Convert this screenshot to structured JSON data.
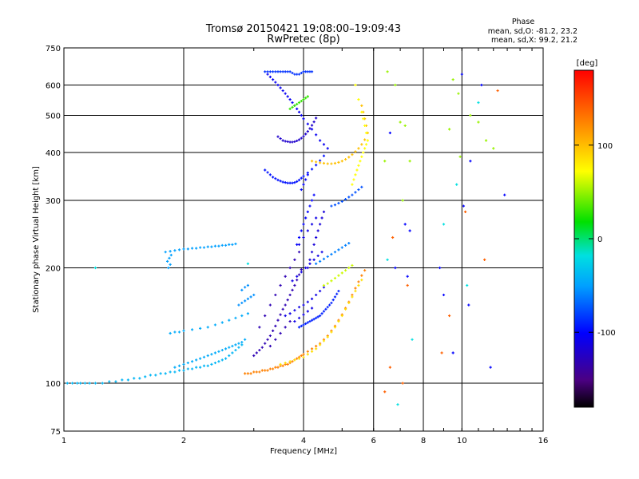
{
  "chart_data": {
    "type": "scatter",
    "title": "Tromsø 20150421 19:08:00–19:09:43",
    "subtitle": "RwPretec (8p)",
    "xlabel": "Frequency [MHz]",
    "ylabel": "Stationary phase Virtual Height [km]",
    "x_scale": "log",
    "y_scale": "log",
    "xlim": [
      1,
      16
    ],
    "ylim": [
      75,
      750
    ],
    "x_ticks": [
      1,
      2,
      4,
      6,
      8,
      10,
      16
    ],
    "y_ticks": [
      75,
      100,
      200,
      300,
      400,
      500,
      600,
      750
    ],
    "grid": true,
    "stats": {
      "heading": "Phase",
      "line_o": "mean, sd,O: -81.2, 23.2",
      "line_x": "mean, sd,X:  99.2, 21.2"
    },
    "colorbar": {
      "label": "[deg]",
      "min": -180,
      "max": 180,
      "ticks": [
        100,
        0,
        -100
      ],
      "tick_labels": [
        "100",
        "0",
        "-100"
      ]
    },
    "series": [
      {
        "phase": -40,
        "x": [
          1.02,
          1.05,
          1.08,
          1.1,
          1.13,
          1.16,
          1.2,
          1.25,
          1.3,
          1.35,
          1.4,
          1.45,
          1.5,
          1.55,
          1.6,
          1.65,
          1.7,
          1.75,
          1.8,
          1.85,
          1.9,
          1.95,
          2.0,
          2.05,
          2.1,
          2.15,
          2.2,
          2.25,
          2.3,
          2.35,
          2.4,
          2.45,
          2.5,
          2.55,
          2.6,
          2.65,
          2.7,
          2.75,
          2.8
        ],
        "y": [
          100,
          100,
          100,
          100,
          100,
          100,
          100,
          100,
          101,
          101,
          102,
          102,
          103,
          103,
          104,
          105,
          105,
          106,
          106,
          107,
          107,
          108,
          108,
          109,
          109,
          110,
          110,
          111,
          111,
          112,
          113,
          114,
          115,
          116,
          118,
          120,
          122,
          124,
          126
        ]
      },
      {
        "phase": -45,
        "x": [
          1.9,
          1.95,
          2.0,
          2.05,
          2.1,
          2.15,
          2.2,
          2.25,
          2.3,
          2.35,
          2.4,
          2.45,
          2.5,
          2.55,
          2.6,
          2.65,
          2.7,
          2.75,
          2.8,
          2.85,
          1.85,
          1.9,
          1.95,
          2.0,
          2.1,
          2.2,
          2.3,
          2.4,
          2.5,
          2.6,
          2.7,
          2.8,
          2.9
        ],
        "y": [
          110,
          111,
          112,
          113,
          114,
          115,
          116,
          117,
          118,
          119,
          120,
          121,
          122,
          123,
          124,
          125,
          126,
          127,
          128,
          130,
          135,
          136,
          136,
          137,
          138,
          139,
          140,
          142,
          144,
          146,
          148,
          150,
          152
        ]
      },
      {
        "phase": -50,
        "x": [
          1.8,
          1.85,
          1.9,
          1.95,
          2.0,
          2.05,
          2.1,
          2.15,
          2.2,
          2.25,
          2.3,
          2.35,
          2.4,
          2.45,
          2.5,
          2.55,
          2.6,
          2.65,
          2.7,
          1.82,
          1.84,
          1.86,
          1.85,
          1.83
        ],
        "y": [
          220,
          221,
          222,
          223,
          224,
          224,
          225,
          225,
          226,
          226,
          227,
          227,
          228,
          228,
          229,
          229,
          230,
          230,
          231,
          208,
          212,
          216,
          204,
          200
        ]
      },
      {
        "phase": -55,
        "x": [
          2.75,
          2.8,
          2.85,
          2.9,
          2.95,
          3.0,
          2.8,
          2.85,
          2.9
        ],
        "y": [
          160,
          162,
          164,
          166,
          168,
          170,
          175,
          178,
          180
        ]
      },
      {
        "phase": 140,
        "x": [
          2.85,
          2.9,
          2.95,
          3.0,
          3.05,
          3.1,
          3.15,
          3.2,
          3.25,
          3.3,
          3.35,
          3.4,
          3.45,
          3.5,
          3.55,
          3.6,
          3.65,
          3.7,
          3.75,
          3.8,
          3.85,
          3.9,
          3.95,
          4.0,
          4.1,
          4.2,
          4.3,
          4.4,
          4.5,
          4.6,
          4.7,
          4.8,
          4.9,
          5.0,
          5.1,
          5.2,
          5.3,
          5.4,
          5.5,
          5.6,
          5.7
        ],
        "y": [
          106,
          106,
          106,
          107,
          107,
          107,
          108,
          108,
          108,
          109,
          109,
          110,
          110,
          111,
          111,
          112,
          112,
          113,
          114,
          115,
          116,
          117,
          118,
          119,
          121,
          123,
          125,
          127,
          130,
          133,
          137,
          141,
          146,
          151,
          157,
          163,
          170,
          177,
          184,
          191,
          197
        ]
      },
      {
        "phase": 110,
        "x": [
          3.5,
          3.6,
          3.7,
          3.8,
          3.9,
          4.0,
          4.1,
          4.2,
          4.3,
          4.4,
          4.5,
          4.6,
          4.7,
          4.8,
          4.9,
          5.0,
          5.1,
          5.2,
          5.3,
          5.4,
          5.5,
          5.6
        ],
        "y": [
          112,
          113,
          114,
          115,
          116,
          117,
          119,
          121,
          123,
          126,
          129,
          132,
          136,
          140,
          145,
          150,
          156,
          162,
          168,
          174,
          180,
          186
        ]
      },
      {
        "phase": -130,
        "x": [
          3.0,
          3.05,
          3.1,
          3.15,
          3.2,
          3.25,
          3.3,
          3.35,
          3.4,
          3.45,
          3.5,
          3.55,
          3.6,
          3.65,
          3.7,
          3.75,
          3.8,
          3.85,
          3.9,
          3.95,
          3.1,
          3.2,
          3.3,
          3.4,
          3.5,
          3.6,
          3.7,
          3.8,
          3.9,
          3.3,
          3.4,
          3.5,
          3.6,
          3.7
        ],
        "y": [
          118,
          120,
          122,
          124,
          127,
          130,
          133,
          137,
          141,
          146,
          151,
          156,
          160,
          165,
          170,
          175,
          180,
          186,
          192,
          198,
          140,
          150,
          160,
          170,
          180,
          190,
          200,
          210,
          220,
          125,
          130,
          135,
          140,
          145
        ]
      },
      {
        "phase": -110,
        "x": [
          3.6,
          3.7,
          3.8,
          3.9,
          4.0,
          4.1,
          4.2,
          4.3,
          4.4,
          4.5,
          3.75,
          3.85,
          3.95,
          4.05,
          4.15,
          4.25,
          4.35,
          4.45,
          3.9,
          4.0,
          4.1,
          4.2,
          4.3,
          3.8,
          3.9,
          4.0,
          4.1,
          4.2
        ],
        "y": [
          150,
          152,
          155,
          158,
          160,
          163,
          166,
          170,
          174,
          178,
          185,
          190,
          195,
          200,
          205,
          210,
          215,
          220,
          230,
          240,
          250,
          260,
          270,
          145,
          148,
          151,
          154,
          157
        ]
      },
      {
        "phase": -90,
        "x": [
          3.9,
          3.95,
          4.0,
          4.05,
          4.1,
          4.15,
          4.2,
          4.25,
          4.3,
          4.35,
          4.4,
          4.45,
          4.5,
          4.55,
          4.6,
          4.65,
          4.7,
          4.75,
          4.8,
          4.85,
          4.9
        ],
        "y": [
          140,
          141,
          142,
          143,
          144,
          145,
          146,
          147,
          148,
          149,
          150,
          152,
          154,
          156,
          158,
          160,
          162,
          165,
          168,
          171,
          174
        ]
      },
      {
        "phase": -100,
        "x": [
          3.85,
          3.9,
          3.95,
          4.0,
          4.05,
          4.1,
          4.15,
          4.2,
          4.25,
          3.95,
          4.0,
          4.05,
          4.1
        ],
        "y": [
          230,
          240,
          250,
          260,
          270,
          280,
          290,
          300,
          310,
          320,
          330,
          340,
          350
        ]
      },
      {
        "phase": -95,
        "x": [
          3.2,
          3.25,
          3.3,
          3.35,
          3.4,
          3.45,
          3.5,
          3.55,
          3.6,
          3.65,
          3.7,
          3.75,
          3.8,
          3.85,
          3.9,
          3.95,
          4.0,
          4.1,
          4.2,
          4.3,
          4.4,
          4.5
        ],
        "y": [
          360,
          355,
          350,
          345,
          342,
          339,
          337,
          335,
          334,
          333,
          333,
          333,
          334,
          336,
          339,
          343,
          347,
          354,
          362,
          371,
          381,
          392
        ]
      },
      {
        "phase": -120,
        "x": [
          3.45,
          3.5,
          3.55,
          3.6,
          3.65,
          3.7,
          3.75,
          3.8,
          3.85,
          3.9,
          3.95,
          4.0,
          4.05,
          4.1,
          4.15,
          4.2,
          4.25,
          4.3
        ],
        "y": [
          440,
          435,
          430,
          428,
          427,
          426,
          426,
          427,
          429,
          432,
          436,
          441,
          447,
          454,
          462,
          471,
          481,
          492
        ]
      },
      {
        "phase": -105,
        "x": [
          3.25,
          3.3,
          3.35,
          3.4,
          3.45,
          3.5,
          3.55,
          3.6,
          3.65,
          3.7,
          3.75,
          3.8,
          3.85,
          3.9,
          3.95,
          4.0,
          4.1,
          4.2,
          4.3,
          4.4,
          4.5,
          4.6
        ],
        "y": [
          640,
          630,
          620,
          610,
          600,
          590,
          580,
          570,
          560,
          550,
          540,
          530,
          520,
          510,
          500,
          490,
          475,
          460,
          445,
          430,
          420,
          410
        ]
      },
      {
        "phase": -85,
        "x": [
          3.2,
          3.25,
          3.3,
          3.35,
          3.4,
          3.45,
          3.5,
          3.55,
          3.6,
          3.65,
          3.7,
          3.75,
          3.8,
          3.85,
          3.9,
          3.95,
          4.0,
          4.05,
          4.1,
          4.15,
          4.2
        ],
        "y": [
          650,
          650,
          650,
          650,
          650,
          650,
          650,
          650,
          650,
          650,
          650,
          645,
          640,
          640,
          640,
          645,
          650,
          650,
          650,
          650,
          650
        ]
      },
      {
        "phase": 120,
        "x": [
          4.2,
          4.3,
          4.4,
          4.5,
          4.6,
          4.7,
          4.8,
          4.9,
          5.0,
          5.1,
          5.2,
          5.3,
          5.4,
          5.5,
          5.6,
          5.7,
          5.8,
          5.75,
          5.7,
          5.65,
          5.6
        ],
        "y": [
          380,
          378,
          376,
          375,
          374,
          374,
          375,
          377,
          380,
          384,
          389,
          395,
          402,
          410,
          420,
          432,
          450,
          470,
          490,
          510,
          530
        ]
      },
      {
        "phase": 100,
        "x": [
          5.3,
          5.35,
          5.4,
          5.45,
          5.5,
          5.55,
          5.6,
          5.65,
          5.7,
          5.75,
          5.8,
          5.75,
          5.7,
          5.65,
          5.6,
          5.5,
          5.4
        ],
        "y": [
          330,
          340,
          350,
          360,
          370,
          380,
          390,
          400,
          410,
          420,
          430,
          450,
          470,
          490,
          510,
          550,
          600
        ]
      },
      {
        "phase": 20,
        "x": [
          3.7,
          3.75,
          3.8,
          3.85,
          3.9,
          3.95,
          4.0,
          4.05,
          4.1
        ],
        "y": [
          520,
          525,
          530,
          535,
          540,
          545,
          550,
          555,
          560
        ]
      },
      {
        "phase": -75,
        "x": [
          4.7,
          4.8,
          4.9,
          5.0,
          5.1,
          5.2,
          5.3,
          5.4,
          5.5,
          5.6
        ],
        "y": [
          290,
          292,
          295,
          298,
          302,
          306,
          310,
          315,
          320,
          325
        ]
      },
      {
        "phase": -115,
        "x": [
          4.1,
          4.15,
          4.2,
          4.25,
          4.3,
          4.35,
          4.4,
          4.45,
          4.5
        ],
        "y": [
          200,
          210,
          220,
          230,
          240,
          250,
          260,
          270,
          280
        ]
      },
      {
        "phase": 80,
        "x": [
          4.5,
          4.6,
          4.7,
          4.8,
          4.9,
          5.0,
          5.1,
          5.2,
          5.3
        ],
        "y": [
          180,
          182,
          185,
          188,
          191,
          194,
          197,
          200,
          203
        ]
      },
      {
        "phase": -60,
        "x": [
          4.3,
          4.4,
          4.5,
          4.6,
          4.7,
          4.8,
          4.9,
          5.0,
          5.1,
          5.2
        ],
        "y": [
          205,
          208,
          211,
          214,
          217,
          220,
          223,
          226,
          229,
          232
        ]
      },
      {
        "phase": 60,
        "x": [
          6.5,
          6.8,
          7.0,
          7.2,
          7.4,
          9.5,
          9.8,
          10.5,
          11.0,
          11.5,
          12.0,
          6.4,
          7.1,
          9.3,
          9.9
        ],
        "y": [
          650,
          600,
          480,
          470,
          380,
          620,
          570,
          500,
          480,
          430,
          410,
          380,
          300,
          460,
          390
        ]
      },
      {
        "phase": -100,
        "x": [
          6.6,
          7.2,
          7.4,
          8.8,
          9.0,
          10.0,
          10.1,
          10.5,
          11.2,
          12.8,
          6.8,
          7.3,
          9.5,
          10.4,
          11.8
        ],
        "y": [
          450,
          260,
          250,
          200,
          170,
          640,
          290,
          380,
          600,
          310,
          200,
          190,
          120,
          160,
          110
        ]
      },
      {
        "phase": 150,
        "x": [
          6.4,
          6.6,
          7.1,
          7.3,
          8.9,
          9.3,
          10.2,
          11.4,
          6.7,
          12.3
        ],
        "y": [
          95,
          110,
          100,
          180,
          120,
          150,
          280,
          210,
          240,
          580
        ]
      },
      {
        "phase": -20,
        "x": [
          6.5,
          6.9,
          7.5,
          9.0,
          9.7,
          10.3,
          11.0,
          1.2,
          2.9
        ],
        "y": [
          210,
          88,
          130,
          260,
          330,
          180,
          540,
          200,
          205
        ]
      }
    ]
  }
}
